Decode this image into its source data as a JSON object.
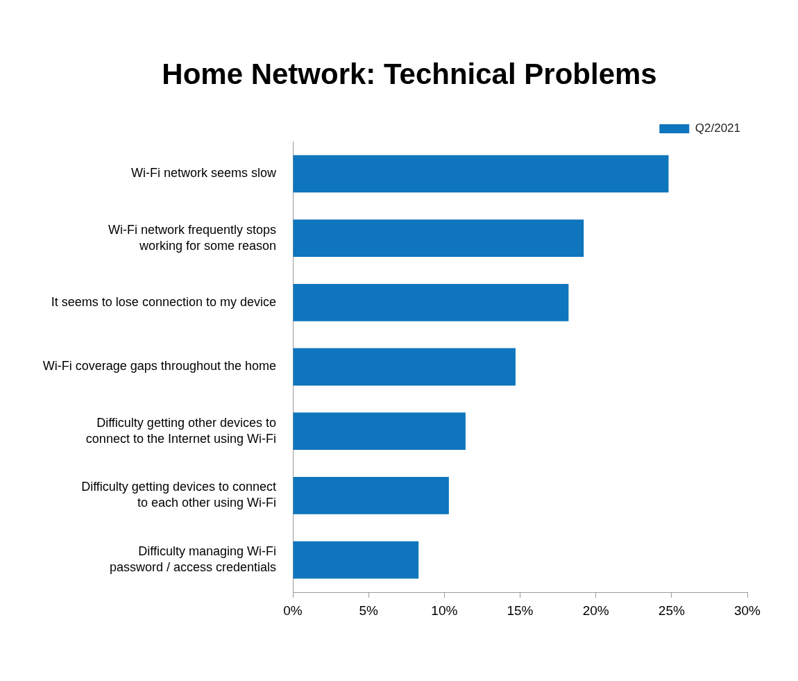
{
  "chart_data": {
    "type": "bar",
    "orientation": "horizontal",
    "title": "Home Network: Technical Problems",
    "categories": [
      "Wi-Fi network seems slow",
      "Wi-Fi network frequently stops\nworking for some reason",
      "It seems to lose connection to my device",
      "Wi-Fi coverage gaps throughout the home",
      "Difficulty getting other devices to\nconnect to the Internet using Wi-Fi",
      "Difficulty getting devices to connect\nto each other using Wi-Fi",
      "Difficulty managing Wi-Fi\npassword / access credentials"
    ],
    "series": [
      {
        "name": "Q2/2021",
        "color": "#0f75bc",
        "values": [
          24.8,
          19.2,
          18.2,
          14.7,
          11.4,
          10.3,
          8.3
        ]
      }
    ],
    "xlim": [
      0,
      30
    ],
    "xticks": [
      {
        "value": 0,
        "label": "0%"
      },
      {
        "value": 5,
        "label": "5%"
      },
      {
        "value": 10,
        "label": "10%"
      },
      {
        "value": 15,
        "label": "15%"
      },
      {
        "value": 20,
        "label": "20%"
      },
      {
        "value": 25,
        "label": "25%"
      },
      {
        "value": 30,
        "label": "30%"
      }
    ],
    "legend": "top right"
  }
}
